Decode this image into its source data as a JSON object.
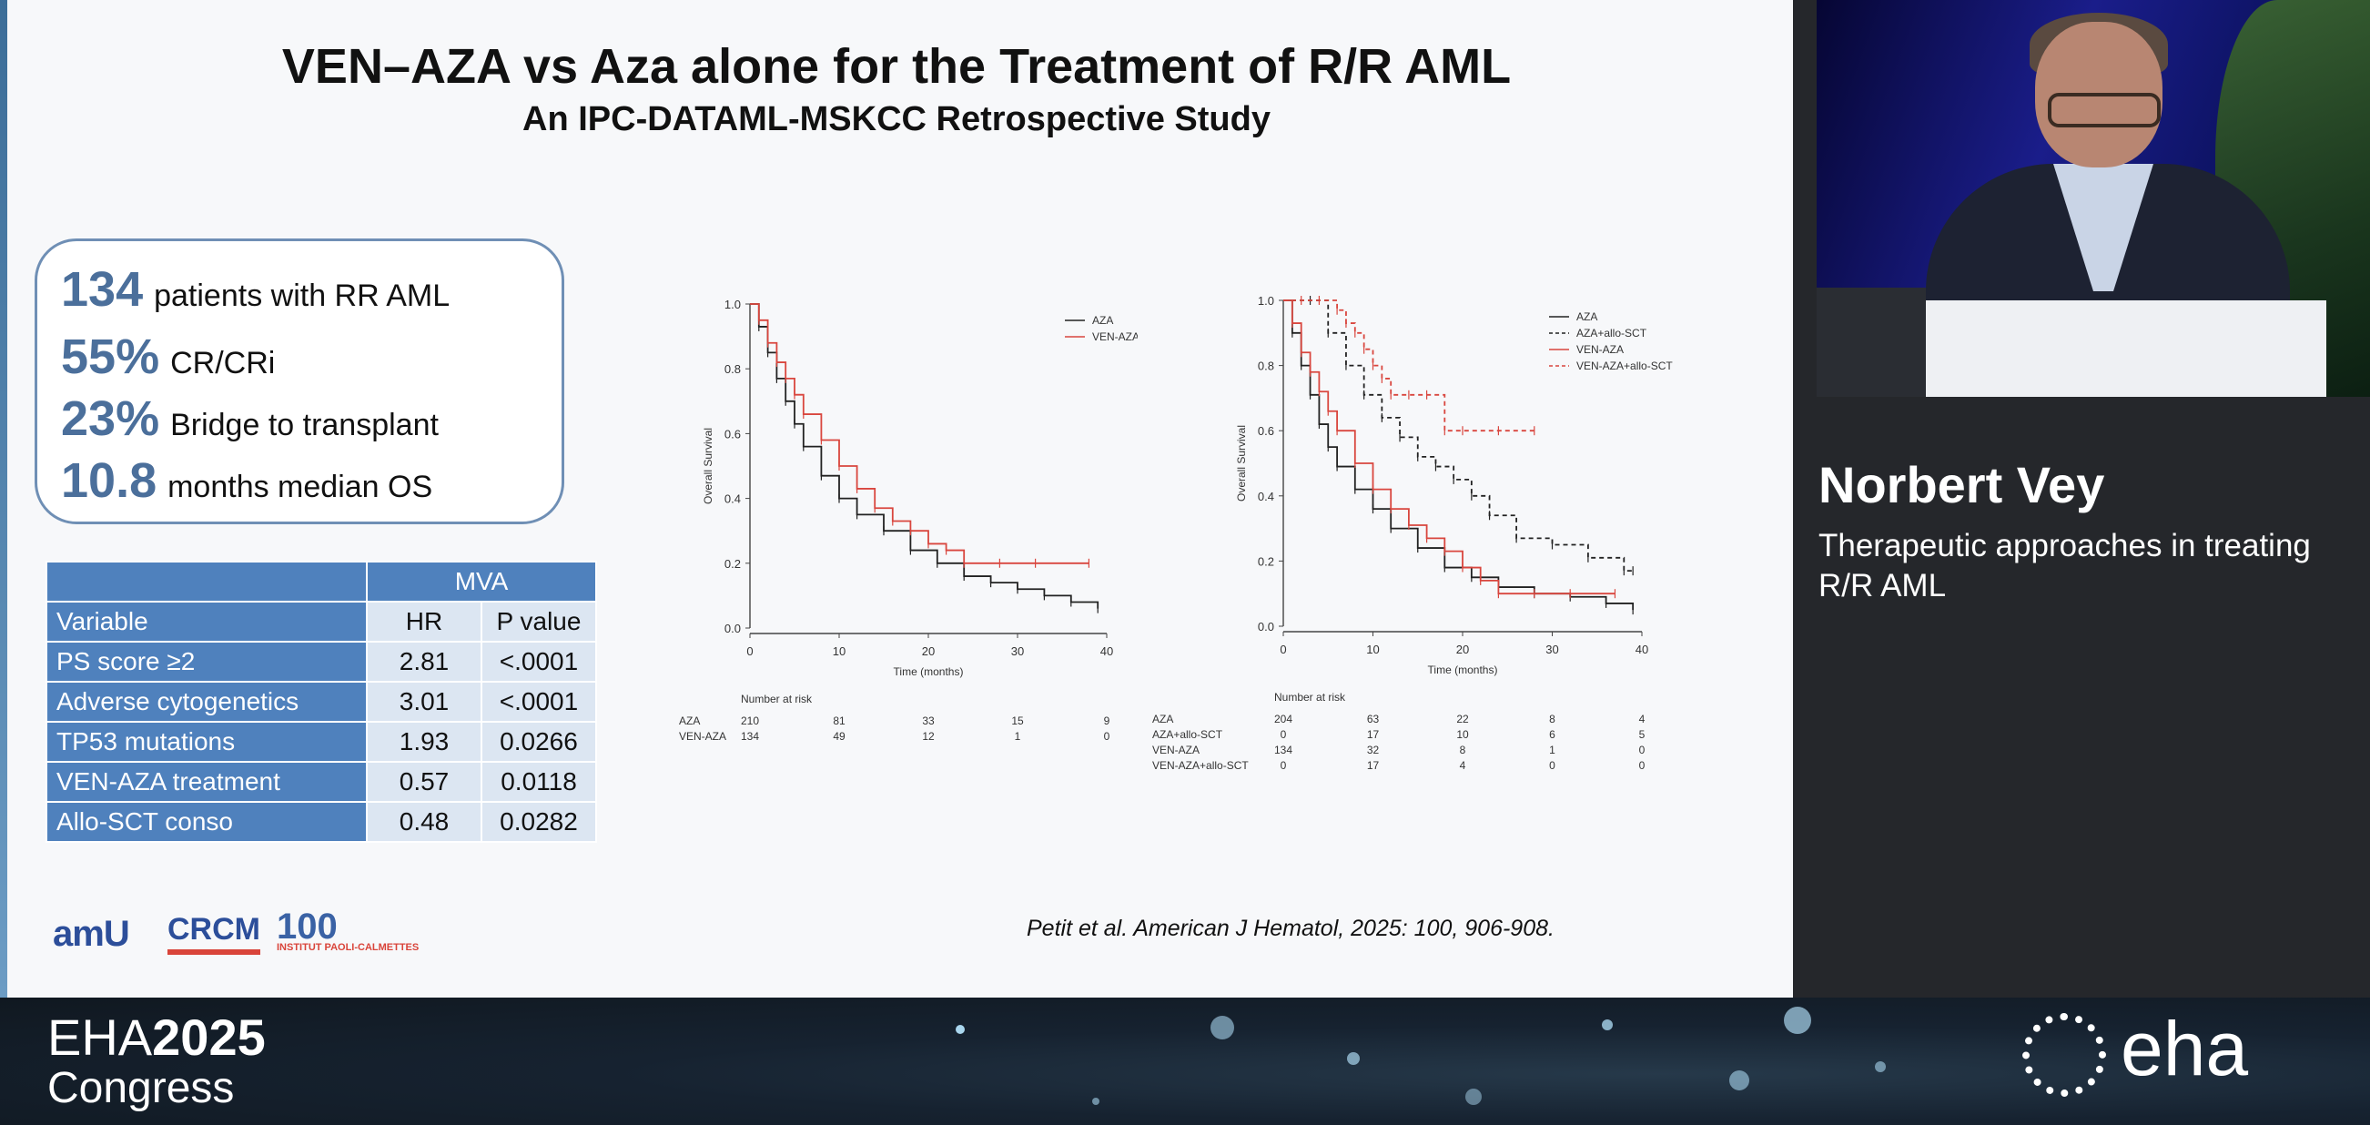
{
  "slide": {
    "title": "VEN–AZA vs Aza alone for the Treatment of R/R AML",
    "subtitle": "An IPC-DATAML-MSKCC Retrospective Study",
    "stats": [
      {
        "value": "134",
        "text": "patients with RR AML"
      },
      {
        "value": "55%",
        "text": "CR/CRi"
      },
      {
        "value": "23%",
        "text": "Bridge to transplant"
      },
      {
        "value": "10.8",
        "text": "months median OS"
      }
    ],
    "mva": {
      "header": "MVA",
      "columns": [
        "Variable",
        "HR",
        "P value"
      ],
      "rows": [
        {
          "variable": "PS score ≥2",
          "hr": "2.81",
          "p": "<.0001"
        },
        {
          "variable": "Adverse cytogenetics",
          "hr": "3.01",
          "p": "<.0001"
        },
        {
          "variable": "TP53 mutations",
          "hr": "1.93",
          "p": "0.0266"
        },
        {
          "variable": "VEN-AZA treatment",
          "hr": "0.57",
          "p": "0.0118"
        },
        {
          "variable": "Allo-SCT conso",
          "hr": "0.48",
          "p": "0.0282"
        }
      ]
    },
    "logos": {
      "amu": "amU",
      "crcm": "CRCM",
      "ipc": "100",
      "ipc_small": "INSTITUT PAOLI-CALMETTES"
    },
    "citation": "Petit et al. American J Hematol, 2025: 100, 906-908."
  },
  "speaker": {
    "name": "Norbert Vey",
    "talk": "Therapeutic approaches in treating R/R AML"
  },
  "footer": {
    "eha": "EHA",
    "year": "2025",
    "congress": "Congress",
    "brand": "eha"
  },
  "colors": {
    "accent_blue": "#4f81bd",
    "stat_blue": "#4b6f9b",
    "series_black": "#222222",
    "series_red": "#d9463e"
  },
  "chart_data": [
    {
      "type": "line",
      "ylabel": "Overall Survival",
      "xlabel": "Time (months)",
      "xlim": [
        0,
        40
      ],
      "ylim": [
        0,
        1
      ],
      "x_ticks": [
        0,
        10,
        20,
        30,
        40
      ],
      "y_ticks": [
        "0.0",
        "0.2",
        "0.4",
        "0.6",
        "0.8",
        "1.0"
      ],
      "legend": "top-right",
      "series": [
        {
          "name": "AZA",
          "style": "solid-black",
          "x": [
            0,
            1,
            2,
            3,
            4,
            5,
            6,
            8,
            10,
            12,
            15,
            18,
            21,
            24,
            27,
            30,
            33,
            36,
            39
          ],
          "y": [
            1.0,
            0.93,
            0.85,
            0.77,
            0.7,
            0.63,
            0.56,
            0.47,
            0.4,
            0.35,
            0.3,
            0.24,
            0.2,
            0.16,
            0.14,
            0.12,
            0.1,
            0.08,
            0.06
          ]
        },
        {
          "name": "VEN-AZA",
          "style": "solid-red",
          "x": [
            0,
            1,
            2,
            3,
            4,
            5,
            6,
            8,
            10,
            12,
            14,
            16,
            18,
            20,
            22,
            24,
            28,
            32,
            38
          ],
          "y": [
            1.0,
            0.95,
            0.88,
            0.82,
            0.77,
            0.72,
            0.66,
            0.58,
            0.5,
            0.43,
            0.37,
            0.33,
            0.3,
            0.26,
            0.24,
            0.2,
            0.2,
            0.2,
            0.2
          ]
        }
      ],
      "risk_table": {
        "title": "Number at risk",
        "rows": [
          {
            "label": "AZA",
            "values": [
              "210",
              "81",
              "33",
              "15",
              "9"
            ]
          },
          {
            "label": "VEN-AZA",
            "values": [
              "134",
              "49",
              "12",
              "1",
              "0"
            ]
          }
        ]
      }
    },
    {
      "type": "line",
      "ylabel": "Overall Survival",
      "xlabel": "Time (months)",
      "xlim": [
        0,
        40
      ],
      "ylim": [
        0,
        1
      ],
      "x_ticks": [
        0,
        10,
        20,
        30,
        40
      ],
      "y_ticks": [
        "0.0",
        "0.2",
        "0.4",
        "0.6",
        "0.8",
        "1.0"
      ],
      "legend": "top-right",
      "series": [
        {
          "name": "AZA",
          "style": "solid-black",
          "x": [
            0,
            1,
            2,
            3,
            4,
            5,
            6,
            8,
            10,
            12,
            15,
            18,
            21,
            24,
            28,
            32,
            36,
            39
          ],
          "y": [
            1.0,
            0.9,
            0.8,
            0.71,
            0.62,
            0.55,
            0.49,
            0.42,
            0.36,
            0.3,
            0.24,
            0.18,
            0.15,
            0.12,
            0.1,
            0.09,
            0.07,
            0.05
          ]
        },
        {
          "name": "AZA+allo-SCT",
          "style": "dashed-black",
          "x": [
            0,
            3,
            5,
            7,
            9,
            11,
            13,
            15,
            17,
            19,
            21,
            23,
            26,
            30,
            34,
            38,
            39
          ],
          "y": [
            1.0,
            1.0,
            0.9,
            0.8,
            0.71,
            0.64,
            0.58,
            0.52,
            0.49,
            0.45,
            0.4,
            0.34,
            0.27,
            0.25,
            0.21,
            0.17,
            0.17
          ]
        },
        {
          "name": "VEN-AZA",
          "style": "solid-red",
          "x": [
            0,
            1,
            2,
            3,
            4,
            5,
            6,
            8,
            10,
            12,
            14,
            16,
            18,
            20,
            22,
            24,
            28,
            32,
            37
          ],
          "y": [
            1.0,
            0.93,
            0.84,
            0.78,
            0.72,
            0.66,
            0.6,
            0.5,
            0.42,
            0.36,
            0.31,
            0.27,
            0.23,
            0.18,
            0.14,
            0.1,
            0.1,
            0.1,
            0.1
          ]
        },
        {
          "name": "VEN-AZA+allo-SCT",
          "style": "dashed-red",
          "x": [
            0,
            2,
            4,
            6,
            7,
            8,
            9,
            10,
            11,
            12,
            14,
            16,
            18,
            20,
            24,
            28
          ],
          "y": [
            1.0,
            1.0,
            1.0,
            0.97,
            0.93,
            0.9,
            0.85,
            0.8,
            0.76,
            0.71,
            0.71,
            0.71,
            0.6,
            0.6,
            0.6,
            0.6
          ]
        }
      ],
      "risk_table": {
        "title": "Number at risk",
        "rows": [
          {
            "label": "AZA",
            "values": [
              "204",
              "63",
              "22",
              "8",
              "4"
            ]
          },
          {
            "label": "AZA+allo-SCT",
            "values": [
              "0",
              "17",
              "10",
              "6",
              "5"
            ]
          },
          {
            "label": "VEN-AZA",
            "values": [
              "134",
              "32",
              "8",
              "1",
              "0"
            ]
          },
          {
            "label": "VEN-AZA+allo-SCT",
            "values": [
              "0",
              "17",
              "4",
              "0",
              "0"
            ]
          }
        ]
      }
    }
  ]
}
